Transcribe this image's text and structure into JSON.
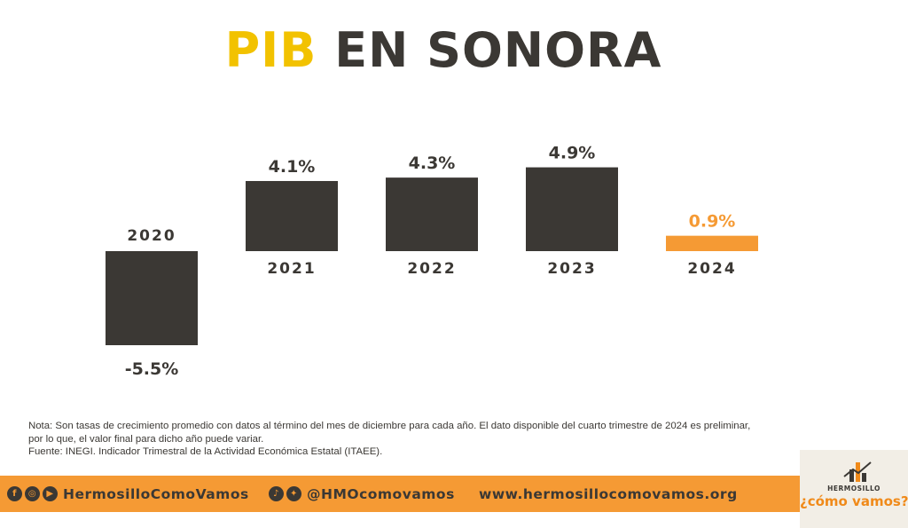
{
  "title": {
    "part1": "PIB",
    "part2": "EN SONORA"
  },
  "chart_data": {
    "type": "bar",
    "title": "PIB EN SONORA",
    "categories": [
      "2020",
      "2021",
      "2022",
      "2023",
      "2024"
    ],
    "values": [
      -5.5,
      4.1,
      4.3,
      4.9,
      0.9
    ],
    "value_labels": [
      "-5.5%",
      "4.1%",
      "4.3%",
      "4.9%",
      "0.9%"
    ],
    "unit": "%",
    "colors": [
      "#3b3834",
      "#3b3834",
      "#3b3834",
      "#3b3834",
      "#f59a34"
    ],
    "highlight_label_color": "#f59a34",
    "ylim": [
      -5.5,
      4.9
    ],
    "grid": false,
    "axes_visible": false
  },
  "note": {
    "line1": "Nota: Son tasas de crecimiento promedio con datos al término del mes de diciembre para cada año. El dato disponible del cuarto trimestre de 2024 es preliminar,",
    "line2": "por lo que, el valor final para dicho año puede variar.",
    "line3": "Fuente: INEGI. Indicador Trimestral de la Actividad Económica Estatal (ITAEE)."
  },
  "footer": {
    "background": "#f59a34",
    "handle_facebook_instagram_youtube": "HermosilloComoVamos",
    "handle_tiktok_twitter": "@HMOcomovamos",
    "website": "www.hermosillocomovamos.org",
    "icons": [
      "facebook-icon",
      "instagram-icon",
      "youtube-icon",
      "tiktok-icon",
      "twitter-icon"
    ]
  },
  "logo": {
    "top_text": "HERMOSILLO",
    "main_text": "¿cómo vamos?"
  }
}
